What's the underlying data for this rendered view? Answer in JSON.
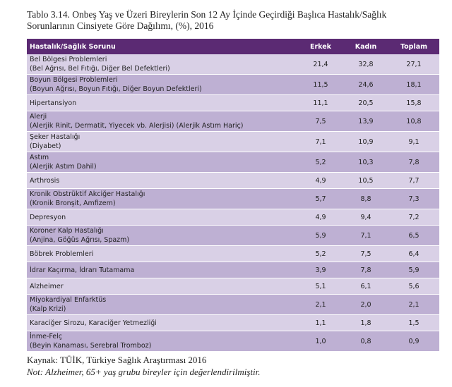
{
  "title_line1": "Tablo 3.14. Onbeş Yaş ve Üzeri Bireylerin Son 12 Ay İçinde Geçirdiği Başlıca Hastalık/Sağlık",
  "title_line2": "Sorunlarının Cinsiyete Göre Dağılımı, (%), 2016",
  "headers": [
    "Hastalık/Sağlık Sorunu",
    "Erkek",
    "Kadın",
    "Toplam"
  ],
  "rows": [
    {
      "name": "Bel Bölgesi Problemleri",
      "sub": "(Bel Ağrısı, Bel Fıtığı, Diğer Bel Defektleri)",
      "erkek": "21,4",
      "kadin": "32,8",
      "toplam": "27,1"
    },
    {
      "name": "Boyun Bölgesi Problemleri",
      "sub": "(Boyun Ağrısı, Boyun Fıtığı, Diğer Boyun Defektleri)",
      "erkek": "11,5",
      "kadin": "24,6",
      "toplam": "18,1"
    },
    {
      "name": "Hipertansiyon",
      "sub": "",
      "erkek": "11,1",
      "kadin": "20,5",
      "toplam": "15,8"
    },
    {
      "name": "Alerji",
      "sub": "(Alerjik Rinit, Dermatit, Yiyecek vb. Alerjisi) (Alerjik Astım Hariç)",
      "erkek": "7,5",
      "kadin": "13,9",
      "toplam": "10,8"
    },
    {
      "name": "Şeker Hastalığı",
      "sub": "(Diyabet)",
      "erkek": "7,1",
      "kadin": "10,9",
      "toplam": "9,1"
    },
    {
      "name": "Astım",
      "sub": "(Alerjik Astım Dahil)",
      "erkek": "5,2",
      "kadin": "10,3",
      "toplam": "7,8"
    },
    {
      "name": "Arthrosis",
      "sub": "",
      "erkek": "4,9",
      "kadin": "10,5",
      "toplam": "7,7"
    },
    {
      "name": "Kronik Obstrüktif Akciğer Hastalığı",
      "sub": "(Kronik Bronşit, Amfizem)",
      "erkek": "5,7",
      "kadin": "8,8",
      "toplam": "7,3"
    },
    {
      "name": "Depresyon",
      "sub": "",
      "erkek": "4,9",
      "kadin": "9,4",
      "toplam": "7,2"
    },
    {
      "name": "Koroner Kalp Hastalığı",
      "sub": "(Anjina, Göğüs Ağrısı, Spazm)",
      "erkek": "5,9",
      "kadin": "7,1",
      "toplam": "6,5"
    },
    {
      "name": "Böbrek Problemleri",
      "sub": "",
      "erkek": "5,2",
      "kadin": "7,5",
      "toplam": "6,4"
    },
    {
      "name": "İdrar Kaçırma, İdrarı Tutamama",
      "sub": "",
      "erkek": "3,9",
      "kadin": "7,8",
      "toplam": "5,9"
    },
    {
      "name": "Alzheimer",
      "sub": "",
      "erkek": "5,1",
      "kadin": "6,1",
      "toplam": "5,6"
    },
    {
      "name": "Miyokardiyal Enfarktüs",
      "sub": "(Kalp Krizi)",
      "erkek": "2,1",
      "kadin": "2,0",
      "toplam": "2,1"
    },
    {
      "name": "Karaciğer Sirozu, Karaciğer Yetmezliği",
      "sub": "",
      "erkek": "1,1",
      "kadin": "1,8",
      "toplam": "1,5"
    },
    {
      "name": "İnme-Felç",
      "sub": "(Beyin Kanaması, Serebral Tromboz)",
      "erkek": "1,0",
      "kadin": "0,8",
      "toplam": "0,9"
    }
  ],
  "source": "Kaynak: TÜİK, Türkiye Sağlık Araştırması 2016",
  "note": "Not: Alzheimer, 65+ yaş grubu bireyler için değerlendirilmiştir."
}
